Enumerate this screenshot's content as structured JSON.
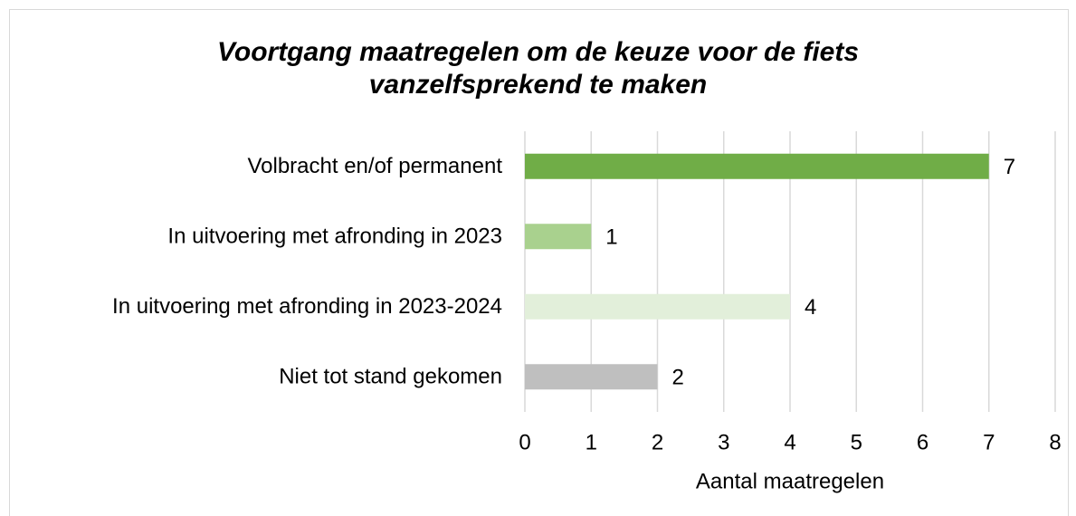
{
  "chart_data": {
    "type": "bar",
    "orientation": "horizontal",
    "title": "Voortgang maatregelen om de keuze voor de fiets vanzelfsprekend te maken",
    "categories": [
      "Volbracht en/of permanent",
      "In uitvoering met afronding in 2023",
      "In uitvoering met afronding in 2023-2024",
      "Niet tot stand gekomen"
    ],
    "values": [
      7,
      1,
      4,
      2
    ],
    "colors": [
      "#70ad47",
      "#a9d18e",
      "#e2efda",
      "#bfbfbf"
    ],
    "xlabel": "Aantal maatregelen",
    "xlim": [
      0,
      8
    ],
    "xticks": [
      0,
      1,
      2,
      3,
      4,
      5,
      6,
      7,
      8
    ],
    "grid": true
  }
}
